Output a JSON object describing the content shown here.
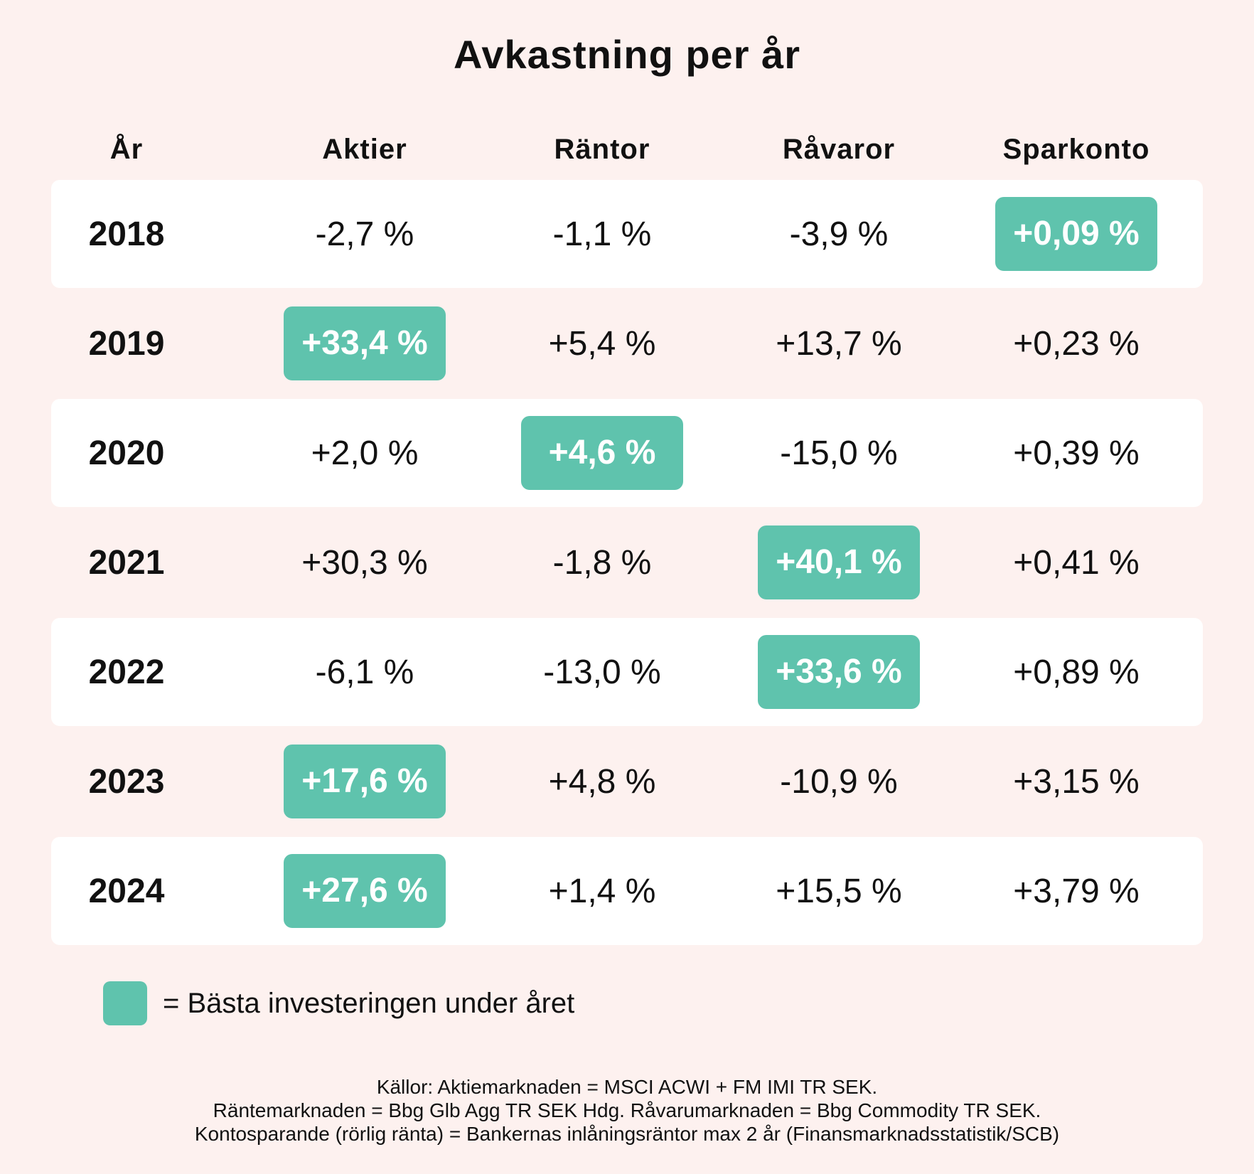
{
  "chart_data": {
    "type": "table",
    "title": "Avkastning per år",
    "columns": [
      "År",
      "Aktier",
      "Räntor",
      "Råvaror",
      "Sparkonto"
    ],
    "rows": [
      {
        "year": "2018",
        "values": [
          "-2,7 %",
          "-1,1 %",
          "-3,9 %",
          "+0,09 %"
        ],
        "best_index": 3
      },
      {
        "year": "2019",
        "values": [
          "+33,4 %",
          "+5,4 %",
          "+13,7 %",
          "+0,23 %"
        ],
        "best_index": 0
      },
      {
        "year": "2020",
        "values": [
          "+2,0 %",
          "+4,6 %",
          "-15,0 %",
          "+0,39 %"
        ],
        "best_index": 1
      },
      {
        "year": "2021",
        "values": [
          "+30,3 %",
          "-1,8 %",
          "+40,1 %",
          "+0,41 %"
        ],
        "best_index": 2
      },
      {
        "year": "2022",
        "values": [
          "-6,1 %",
          "-13,0 %",
          "+33,6 %",
          "+0,89 %"
        ],
        "best_index": 2
      },
      {
        "year": "2023",
        "values": [
          "+17,6 %",
          "+4,8 %",
          "-10,9 %",
          "+3,15 %"
        ],
        "best_index": 0
      },
      {
        "year": "2024",
        "values": [
          "+27,6 %",
          "+1,4 %",
          "+15,5 %",
          "+3,79 %"
        ],
        "best_index": 0
      }
    ],
    "legend": "= Bästa investeringen under året",
    "sources": [
      "Källor: Aktiemarknaden = MSCI ACWI + FM IMI TR SEK.",
      "Räntemarknaden = Bbg Glb Agg TR SEK Hdg. Råvarumarknaden = Bbg Commodity TR SEK.",
      "Kontosparande (rörlig ränta) = Bankernas inlåningsräntor max 2 år (Finansmarknadsstatistik/SCB)"
    ]
  },
  "colors": {
    "background": "#fdf1ef",
    "row_alt": "#ffffff",
    "highlight": "#5fc3ad",
    "text": "#111111"
  }
}
